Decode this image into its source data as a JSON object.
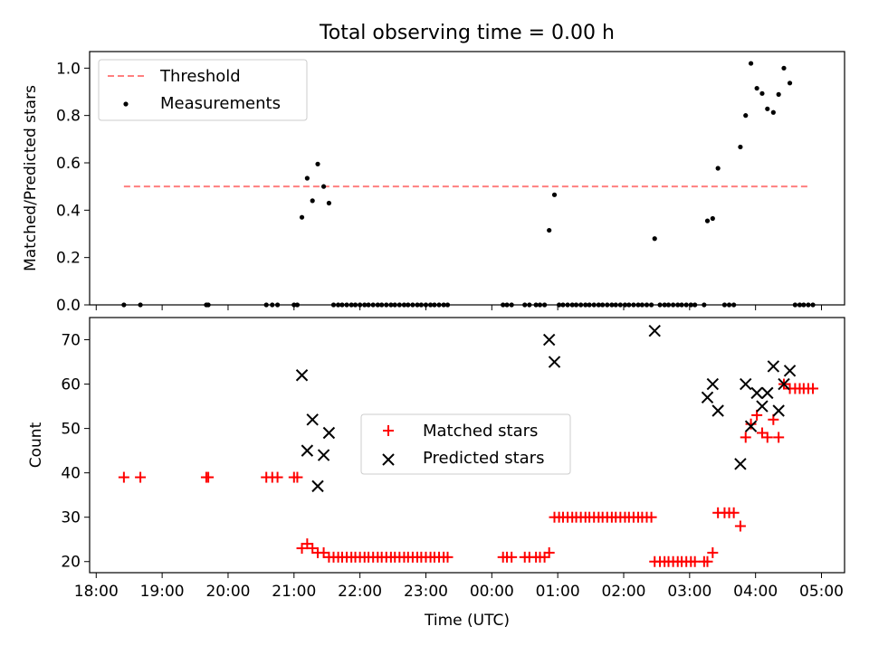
{
  "figure": {
    "title": "Total observing time = 0.00 h"
  },
  "chart_data": [
    {
      "type": "scatter",
      "ylabel": "Matched/Predicted stars",
      "xlabel": "",
      "ylim": [
        0,
        1.07
      ],
      "xlim": [
        -0.1,
        11.35
      ],
      "x_origin": "18:00",
      "yticks": [
        0,
        0.2,
        0.4,
        0.6,
        0.8,
        1.0
      ],
      "ytick_labels": [
        "0.0",
        "0.2",
        "0.4",
        "0.6",
        "0.8",
        "1.0"
      ],
      "xtick_labels_shown": false,
      "grid": false,
      "legend": {
        "placement": "top-left",
        "entries": [
          "Threshold",
          "Measurements"
        ]
      },
      "threshold": {
        "name": "Threshold",
        "y": 0.5,
        "x_start": 0.42,
        "x_end": 10.83,
        "color": "#ff7f7f",
        "style": "dashed"
      },
      "series": [
        {
          "name": "Measurements",
          "marker": "dot",
          "color": "#000000",
          "points": [
            [
              0.42,
              0
            ],
            [
              0.67,
              0
            ],
            [
              1.67,
              0
            ],
            [
              1.7,
              0
            ],
            [
              2.58,
              0
            ],
            [
              2.67,
              0
            ],
            [
              2.75,
              0
            ],
            [
              3.0,
              0
            ],
            [
              3.05,
              0
            ],
            [
              3.12,
              0.37
            ],
            [
              3.2,
              0.535
            ],
            [
              3.28,
              0.44
            ],
            [
              3.36,
              0.595
            ],
            [
              3.45,
              0.5
            ],
            [
              3.53,
              0.43
            ],
            [
              3.6,
              0
            ],
            [
              3.67,
              0
            ],
            [
              3.73,
              0
            ],
            [
              3.8,
              0
            ],
            [
              3.87,
              0
            ],
            [
              3.93,
              0
            ],
            [
              4.0,
              0
            ],
            [
              4.07,
              0
            ],
            [
              4.13,
              0
            ],
            [
              4.2,
              0
            ],
            [
              4.27,
              0
            ],
            [
              4.33,
              0
            ],
            [
              4.4,
              0
            ],
            [
              4.47,
              0
            ],
            [
              4.53,
              0
            ],
            [
              4.6,
              0
            ],
            [
              4.67,
              0
            ],
            [
              4.73,
              0
            ],
            [
              4.8,
              0
            ],
            [
              4.87,
              0
            ],
            [
              4.93,
              0
            ],
            [
              5.0,
              0
            ],
            [
              5.07,
              0
            ],
            [
              5.13,
              0
            ],
            [
              5.2,
              0
            ],
            [
              5.27,
              0
            ],
            [
              5.33,
              0
            ],
            [
              6.17,
              0
            ],
            [
              6.23,
              0
            ],
            [
              6.3,
              0
            ],
            [
              6.5,
              0
            ],
            [
              6.57,
              0
            ],
            [
              6.67,
              0
            ],
            [
              6.73,
              0
            ],
            [
              6.8,
              0
            ],
            [
              6.87,
              0.315
            ],
            [
              6.95,
              0.465
            ],
            [
              7.02,
              0
            ],
            [
              7.08,
              0
            ],
            [
              7.15,
              0
            ],
            [
              7.22,
              0
            ],
            [
              7.28,
              0
            ],
            [
              7.35,
              0
            ],
            [
              7.42,
              0
            ],
            [
              7.48,
              0
            ],
            [
              7.55,
              0
            ],
            [
              7.62,
              0
            ],
            [
              7.68,
              0
            ],
            [
              7.75,
              0
            ],
            [
              7.82,
              0
            ],
            [
              7.88,
              0
            ],
            [
              7.95,
              0
            ],
            [
              8.02,
              0
            ],
            [
              8.08,
              0
            ],
            [
              8.15,
              0
            ],
            [
              8.22,
              0
            ],
            [
              8.28,
              0
            ],
            [
              8.35,
              0
            ],
            [
              8.42,
              0
            ],
            [
              8.47,
              0.28
            ],
            [
              8.55,
              0
            ],
            [
              8.62,
              0
            ],
            [
              8.68,
              0
            ],
            [
              8.75,
              0
            ],
            [
              8.82,
              0
            ],
            [
              8.88,
              0
            ],
            [
              8.95,
              0
            ],
            [
              9.02,
              0
            ],
            [
              9.08,
              0
            ],
            [
              9.22,
              0
            ],
            [
              9.27,
              0.355
            ],
            [
              9.35,
              0.365
            ],
            [
              9.43,
              0.577
            ],
            [
              9.53,
              0
            ],
            [
              9.6,
              0
            ],
            [
              9.67,
              0
            ],
            [
              9.77,
              0.667
            ],
            [
              9.85,
              0.8
            ],
            [
              9.93,
              1.02
            ],
            [
              10.02,
              0.915
            ],
            [
              10.1,
              0.893
            ],
            [
              10.18,
              0.828
            ],
            [
              10.27,
              0.813
            ],
            [
              10.35,
              0.889
            ],
            [
              10.43,
              1.0
            ],
            [
              10.52,
              0.937
            ],
            [
              10.6,
              0
            ],
            [
              10.67,
              0
            ],
            [
              10.73,
              0
            ],
            [
              10.8,
              0
            ],
            [
              10.87,
              0
            ]
          ]
        }
      ]
    },
    {
      "type": "scatter",
      "ylabel": "Count",
      "xlabel": "Time (UTC)",
      "ylim": [
        17.5,
        75
      ],
      "xlim": [
        -0.1,
        11.35
      ],
      "x_origin": "18:00",
      "yticks": [
        20,
        30,
        40,
        50,
        60,
        70
      ],
      "ytick_labels": [
        "20",
        "30",
        "40",
        "50",
        "60",
        "70"
      ],
      "xticks": [
        0,
        1,
        2,
        3,
        4,
        5,
        6,
        7,
        8,
        9,
        10,
        11
      ],
      "xtick_labels": [
        "18:00",
        "19:00",
        "20:00",
        "21:00",
        "22:00",
        "23:00",
        "00:00",
        "01:00",
        "02:00",
        "03:00",
        "04:00",
        "05:00"
      ],
      "grid": false,
      "legend": {
        "placement": "center",
        "entries": [
          "Matched stars",
          "Predicted stars"
        ]
      },
      "series": [
        {
          "name": "Matched stars",
          "marker": "plus",
          "color": "#ff0000",
          "points": [
            [
              0.42,
              39
            ],
            [
              0.67,
              39
            ],
            [
              1.67,
              39
            ],
            [
              1.7,
              39
            ],
            [
              2.58,
              39
            ],
            [
              2.67,
              39
            ],
            [
              2.75,
              39
            ],
            [
              3.0,
              39
            ],
            [
              3.05,
              39
            ],
            [
              3.12,
              23
            ],
            [
              3.2,
              24
            ],
            [
              3.28,
              23
            ],
            [
              3.36,
              22
            ],
            [
              3.45,
              22
            ],
            [
              3.53,
              21
            ],
            [
              3.6,
              21
            ],
            [
              3.67,
              21
            ],
            [
              3.73,
              21
            ],
            [
              3.8,
              21
            ],
            [
              3.87,
              21
            ],
            [
              3.93,
              21
            ],
            [
              4.0,
              21
            ],
            [
              4.07,
              21
            ],
            [
              4.13,
              21
            ],
            [
              4.2,
              21
            ],
            [
              4.27,
              21
            ],
            [
              4.33,
              21
            ],
            [
              4.4,
              21
            ],
            [
              4.47,
              21
            ],
            [
              4.53,
              21
            ],
            [
              4.6,
              21
            ],
            [
              4.67,
              21
            ],
            [
              4.73,
              21
            ],
            [
              4.8,
              21
            ],
            [
              4.87,
              21
            ],
            [
              4.93,
              21
            ],
            [
              5.0,
              21
            ],
            [
              5.07,
              21
            ],
            [
              5.13,
              21
            ],
            [
              5.2,
              21
            ],
            [
              5.27,
              21
            ],
            [
              5.33,
              21
            ],
            [
              6.17,
              21
            ],
            [
              6.23,
              21
            ],
            [
              6.3,
              21
            ],
            [
              6.5,
              21
            ],
            [
              6.57,
              21
            ],
            [
              6.67,
              21
            ],
            [
              6.73,
              21
            ],
            [
              6.8,
              21
            ],
            [
              6.87,
              22
            ],
            [
              6.95,
              30
            ],
            [
              7.02,
              30
            ],
            [
              7.08,
              30
            ],
            [
              7.15,
              30
            ],
            [
              7.22,
              30
            ],
            [
              7.28,
              30
            ],
            [
              7.35,
              30
            ],
            [
              7.42,
              30
            ],
            [
              7.48,
              30
            ],
            [
              7.55,
              30
            ],
            [
              7.62,
              30
            ],
            [
              7.68,
              30
            ],
            [
              7.75,
              30
            ],
            [
              7.82,
              30
            ],
            [
              7.88,
              30
            ],
            [
              7.95,
              30
            ],
            [
              8.02,
              30
            ],
            [
              8.08,
              30
            ],
            [
              8.15,
              30
            ],
            [
              8.22,
              30
            ],
            [
              8.28,
              30
            ],
            [
              8.35,
              30
            ],
            [
              8.42,
              30
            ],
            [
              8.47,
              20
            ],
            [
              8.55,
              20
            ],
            [
              8.62,
              20
            ],
            [
              8.68,
              20
            ],
            [
              8.75,
              20
            ],
            [
              8.82,
              20
            ],
            [
              8.88,
              20
            ],
            [
              8.95,
              20
            ],
            [
              9.02,
              20
            ],
            [
              9.08,
              20
            ],
            [
              9.22,
              20
            ],
            [
              9.27,
              20
            ],
            [
              9.35,
              22
            ],
            [
              9.43,
              31
            ],
            [
              9.53,
              31
            ],
            [
              9.6,
              31
            ],
            [
              9.67,
              31
            ],
            [
              9.77,
              28
            ],
            [
              9.85,
              48
            ],
            [
              9.93,
              51
            ],
            [
              10.02,
              53
            ],
            [
              10.1,
              49
            ],
            [
              10.18,
              48
            ],
            [
              10.27,
              52
            ],
            [
              10.35,
              48
            ],
            [
              10.43,
              60
            ],
            [
              10.52,
              59
            ],
            [
              10.6,
              59
            ],
            [
              10.67,
              59
            ],
            [
              10.73,
              59
            ],
            [
              10.8,
              59
            ],
            [
              10.87,
              59
            ]
          ]
        },
        {
          "name": "Predicted stars",
          "marker": "x",
          "color": "#000000",
          "points": [
            [
              3.12,
              62
            ],
            [
              3.2,
              45
            ],
            [
              3.28,
              52
            ],
            [
              3.36,
              37
            ],
            [
              3.45,
              44
            ],
            [
              3.53,
              49
            ],
            [
              6.87,
              70
            ],
            [
              6.95,
              65
            ],
            [
              8.47,
              72
            ],
            [
              9.27,
              57
            ],
            [
              9.35,
              60
            ],
            [
              9.43,
              54
            ],
            [
              9.77,
              42
            ],
            [
              9.85,
              60
            ],
            [
              9.93,
              50.5
            ],
            [
              10.02,
              58
            ],
            [
              10.1,
              55
            ],
            [
              10.18,
              58
            ],
            [
              10.27,
              64
            ],
            [
              10.35,
              54
            ],
            [
              10.43,
              60
            ],
            [
              10.52,
              63
            ]
          ]
        }
      ]
    }
  ]
}
